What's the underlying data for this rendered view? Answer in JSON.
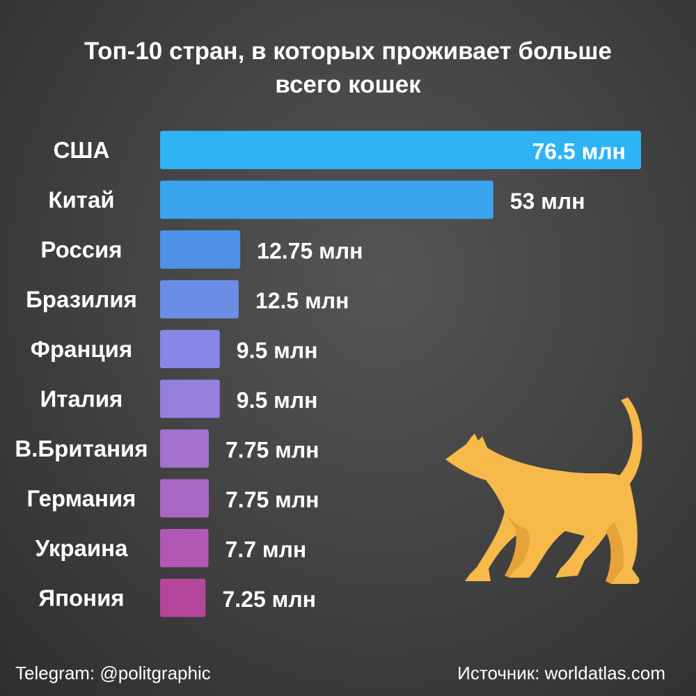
{
  "title_line1": "Топ-10 стран, в которых проживает больше",
  "title_line2": "всего кошек",
  "footer": {
    "telegram": "Telegram: @politgraphic",
    "source": "Источник: worldatlas.com"
  },
  "decoration": {
    "icon": "cat-icon",
    "color": "#f6b94a",
    "shade": "#e7a23a"
  },
  "chart_data": {
    "type": "bar",
    "orientation": "horizontal",
    "title": "Топ-10 стран, в которых проживает больше всего кошек",
    "unit": "млн",
    "categories": [
      "США",
      "Китай",
      "Россия",
      "Бразилия",
      "Франция",
      "Италия",
      "В.Британия",
      "Германия",
      "Украина",
      "Япония"
    ],
    "values": [
      76.5,
      53,
      12.75,
      12.5,
      9.5,
      9.5,
      7.75,
      7.75,
      7.7,
      7.25
    ],
    "value_labels": [
      "76.5 млн",
      "53 млн",
      "12.75 млн",
      "12.5 млн",
      "9.5 млн",
      "9.5 млн",
      "7.75 млн",
      "7.75 млн",
      "7.7 млн",
      "7.25 млн"
    ],
    "colors": [
      "#2eb3f5",
      "#3aa4ee",
      "#4e93e8",
      "#6a8ee6",
      "#8886e4",
      "#9480dc",
      "#a372cf",
      "#ab67c4",
      "#b058b4",
      "#b4479c"
    ],
    "grid": false,
    "legend": "none"
  }
}
